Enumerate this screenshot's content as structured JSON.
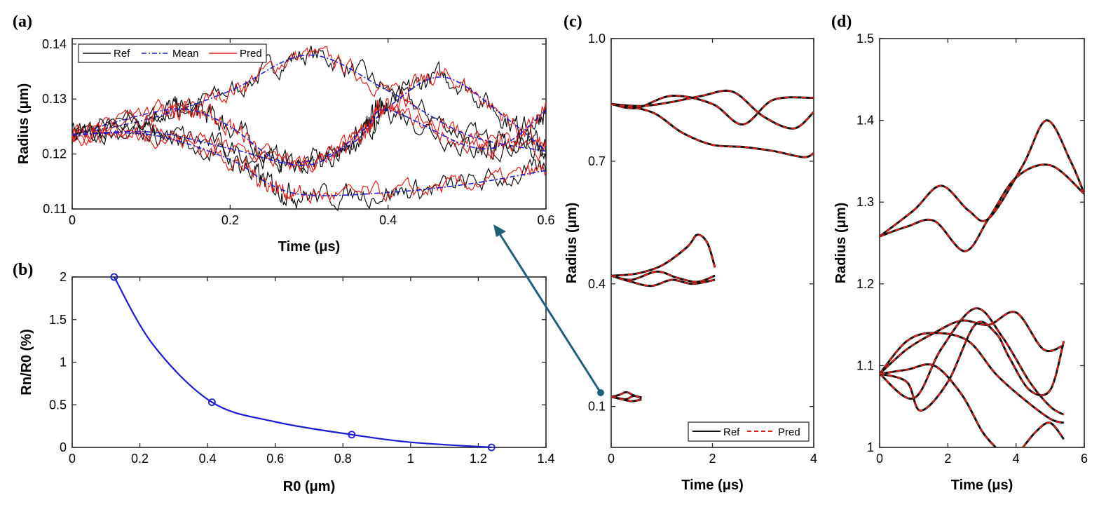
{
  "panel_labels": [
    "(a)",
    "(b)",
    "(c)",
    "(d)"
  ],
  "chart_data": [
    {
      "id": "a",
      "type": "line",
      "xlabel": "Time (μs)",
      "ylabel": "Radius (μm)",
      "xlim": [
        0,
        0.6
      ],
      "ylim": [
        0.11,
        0.141
      ],
      "xticks": [
        0,
        0.2,
        0.4,
        0.6
      ],
      "xtick_labels": [
        "0",
        "0.2",
        "0.4",
        "0.6"
      ],
      "yticks": [
        0.11,
        0.12,
        0.13,
        0.14
      ],
      "ytick_labels": [
        "0.11",
        "0.12",
        "0.13",
        "0.14"
      ],
      "legend": [
        "Ref",
        "Mean",
        "Pred"
      ],
      "legend_position": "top-left",
      "series": [
        {
          "name": "Mean",
          "x": [
            0,
            0.1,
            0.2,
            0.3,
            0.4,
            0.5,
            0.6
          ],
          "values": [
            0.1235,
            0.1265,
            0.1315,
            0.138,
            0.1315,
            0.1235,
            0.1205
          ]
        },
        {
          "name": "Mean",
          "x": [
            0,
            0.1,
            0.15,
            0.2,
            0.27,
            0.35,
            0.4,
            0.47,
            0.55,
            0.6
          ],
          "values": [
            0.1235,
            0.1275,
            0.128,
            0.125,
            0.1185,
            0.1215,
            0.1285,
            0.134,
            0.1265,
            0.1205
          ]
        },
        {
          "name": "Mean",
          "x": [
            0,
            0.1,
            0.2,
            0.3,
            0.37,
            0.4,
            0.5,
            0.55,
            0.6
          ],
          "values": [
            0.1235,
            0.124,
            0.121,
            0.118,
            0.1245,
            0.128,
            0.1215,
            0.122,
            0.128
          ]
        },
        {
          "name": "Mean",
          "x": [
            0,
            0.1,
            0.2,
            0.25,
            0.3,
            0.4,
            0.5,
            0.6
          ],
          "values": [
            0.1235,
            0.1235,
            0.119,
            0.1145,
            0.1125,
            0.113,
            0.1145,
            0.117
          ]
        }
      ]
    },
    {
      "id": "b",
      "type": "line",
      "xlabel": "R0 (μm)",
      "ylabel": "Rn/R0 (%)",
      "xlim": [
        0,
        1.4
      ],
      "ylim": [
        0,
        2
      ],
      "xticks": [
        0,
        0.2,
        0.4,
        0.6,
        0.8,
        1,
        1.2,
        1.4
      ],
      "xtick_labels": [
        "0",
        "0.2",
        "0.4",
        "0.6",
        "0.8",
        "1",
        "1.2",
        "1.4"
      ],
      "yticks": [
        0,
        0.5,
        1,
        1.5,
        2
      ],
      "ytick_labels": [
        "0",
        "0.5",
        "1",
        "1.5",
        "2"
      ],
      "series": [
        {
          "name": "Rn/R0",
          "x": [
            0.124,
            0.413,
            0.826,
            1.239
          ],
          "values": [
            2.0,
            0.53,
            0.15,
            0.0
          ]
        }
      ]
    },
    {
      "id": "c",
      "type": "line",
      "xlabel": "Time (μs)",
      "ylabel": "Radius (μm)",
      "xlim": [
        0,
        4
      ],
      "ylim": [
        0,
        1
      ],
      "xticks": [
        0,
        2,
        4
      ],
      "xtick_labels": [
        "0",
        "2",
        "4"
      ],
      "yticks": [
        0.1,
        0.4,
        0.7,
        1.0
      ],
      "ytick_labels": [
        "0.1",
        "0.4",
        "0.7",
        "1.0"
      ],
      "legend": [
        "Ref",
        "Pred"
      ],
      "legend_position": "bottom-right",
      "series": [
        {
          "name": "Ref",
          "x": [
            0,
            0.5,
            1.2,
            2.0,
            2.6,
            3.2,
            4.0
          ],
          "values": [
            0.84,
            0.83,
            0.86,
            0.84,
            0.79,
            0.85,
            0.855
          ]
        },
        {
          "name": "Ref",
          "x": [
            0,
            0.6,
            1.2,
            1.8,
            2.4,
            3.0,
            3.6,
            4.0
          ],
          "values": [
            0.84,
            0.835,
            0.845,
            0.86,
            0.87,
            0.81,
            0.78,
            0.82
          ]
        },
        {
          "name": "Ref",
          "x": [
            0,
            0.8,
            1.4,
            2.0,
            2.6,
            3.2,
            3.8,
            4.0
          ],
          "values": [
            0.84,
            0.82,
            0.77,
            0.74,
            0.735,
            0.725,
            0.71,
            0.72
          ]
        },
        {
          "name": "Ref",
          "x": [
            0,
            0.5,
            1.0,
            1.5,
            1.7,
            1.9,
            2.05
          ],
          "values": [
            0.42,
            0.425,
            0.445,
            0.49,
            0.52,
            0.5,
            0.44
          ]
        },
        {
          "name": "Ref",
          "x": [
            0,
            0.4,
            0.9,
            1.3,
            1.7,
            2.05
          ],
          "values": [
            0.42,
            0.41,
            0.43,
            0.415,
            0.405,
            0.42
          ]
        },
        {
          "name": "Ref",
          "x": [
            0,
            0.4,
            0.8,
            1.2,
            1.6,
            2.05
          ],
          "values": [
            0.42,
            0.405,
            0.395,
            0.41,
            0.4,
            0.41
          ]
        },
        {
          "name": "Ref",
          "x": [
            0,
            0.15,
            0.3,
            0.45,
            0.6
          ],
          "values": [
            0.124,
            0.128,
            0.135,
            0.127,
            0.122
          ]
        },
        {
          "name": "Ref",
          "x": [
            0,
            0.15,
            0.3,
            0.45,
            0.6
          ],
          "values": [
            0.124,
            0.12,
            0.118,
            0.126,
            0.12
          ]
        },
        {
          "name": "Ref",
          "x": [
            0,
            0.2,
            0.4,
            0.6
          ],
          "values": [
            0.124,
            0.118,
            0.113,
            0.117
          ]
        }
      ]
    },
    {
      "id": "d",
      "type": "line",
      "xlabel": "Time (μs)",
      "ylabel": "Radius (μm)",
      "xlim": [
        0,
        6
      ],
      "ylim": [
        1,
        1.5
      ],
      "xticks": [
        0,
        2,
        4,
        6
      ],
      "xtick_labels": [
        "0",
        "2",
        "4",
        "6"
      ],
      "yticks": [
        1,
        1.1,
        1.2,
        1.3,
        1.4,
        1.5
      ],
      "ytick_labels": [
        "1",
        "1.1",
        "1.2",
        "1.3",
        "1.4",
        "1.5"
      ],
      "series": [
        {
          "name": "Ref",
          "x": [
            0,
            1,
            1.8,
            2.6,
            3.2,
            4.2,
            4.9,
            5.6,
            6.0
          ],
          "values": [
            1.258,
            1.29,
            1.32,
            1.29,
            1.28,
            1.345,
            1.4,
            1.35,
            1.31
          ]
        },
        {
          "name": "Ref",
          "x": [
            0,
            0.8,
            1.6,
            2.5,
            3.2,
            4.0,
            5.0,
            6.0
          ],
          "values": [
            1.258,
            1.27,
            1.277,
            1.24,
            1.28,
            1.33,
            1.345,
            1.31
          ]
        },
        {
          "name": "Ref",
          "x": [
            0,
            0.8,
            1.6,
            2.4,
            3.2,
            4.0,
            4.8,
            5.4
          ],
          "values": [
            1.09,
            1.12,
            1.14,
            1.155,
            1.15,
            1.165,
            1.12,
            1.125
          ]
        },
        {
          "name": "Ref",
          "x": [
            0,
            1.0,
            1.8,
            2.8,
            3.6,
            4.4,
            5.0,
            5.4
          ],
          "values": [
            1.09,
            1.06,
            1.12,
            1.17,
            1.135,
            1.08,
            1.05,
            1.04
          ]
        },
        {
          "name": "Ref",
          "x": [
            0,
            0.8,
            1.6,
            2.6,
            3.4,
            4.2,
            5.0,
            5.4
          ],
          "values": [
            1.09,
            1.13,
            1.14,
            1.13,
            1.09,
            1.06,
            1.035,
            1.03
          ]
        },
        {
          "name": "Ref",
          "x": [
            0,
            0.8,
            1.2,
            2.0,
            2.8,
            3.4,
            3.8,
            4.4,
            5.0,
            5.4
          ],
          "values": [
            1.09,
            1.08,
            1.045,
            1.08,
            1.15,
            1.14,
            1.11,
            1.07,
            1.07,
            1.13
          ]
        },
        {
          "name": "Ref",
          "x": [
            0,
            0.8,
            1.6,
            2.4,
            3.0,
            3.4
          ],
          "values": [
            1.09,
            1.095,
            1.1,
            1.065,
            1.02,
            1.0
          ]
        },
        {
          "name": "Ref",
          "x": [
            4.2,
            4.6,
            5.0,
            5.4
          ],
          "values": [
            1.0,
            1.02,
            1.03,
            1.01
          ]
        }
      ]
    }
  ]
}
